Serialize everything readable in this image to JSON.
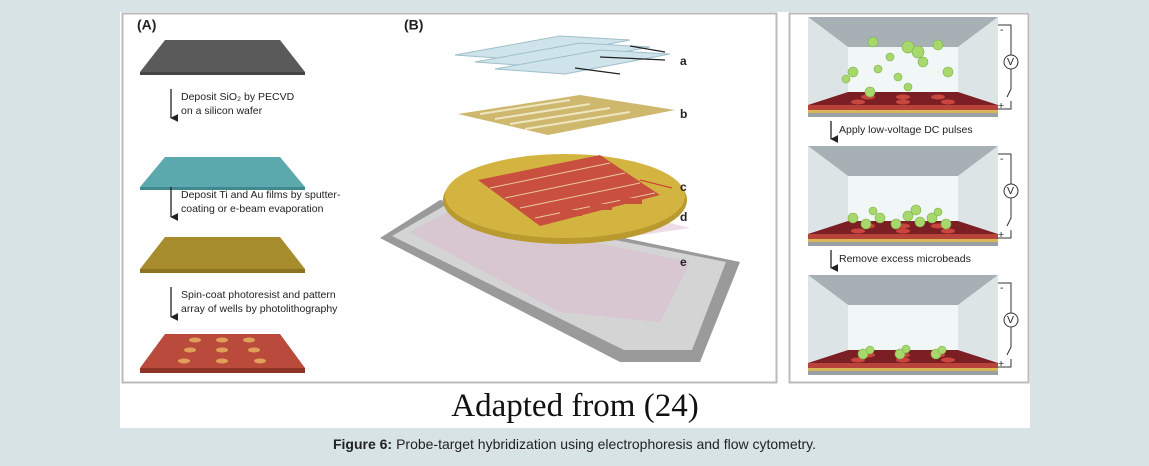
{
  "figure": {
    "panel_a": {
      "label": "(A)",
      "steps": [
        [
          "Deposit SiO₂ by PECVD",
          "on a silicon wafer"
        ],
        [
          "Deposit Ti and Au films by sputter-",
          "coating or e-beam evaporation"
        ],
        [
          "Spin-coat photoresist and pattern",
          "array of wells by photolithography"
        ]
      ]
    },
    "panel_b": {
      "label": "(B)",
      "layer_labels": [
        "a",
        "b",
        "c",
        "d",
        "e"
      ]
    },
    "panel_c": {
      "steps": [
        "Apply low-voltage DC pulses",
        "Remove excess microbeads"
      ],
      "terminals": {
        "negative": "-",
        "positive": "+",
        "meter": "V"
      }
    },
    "attribution": "Adapted from (24)",
    "caption": {
      "label": "Figure 6:",
      "text": "Probe-target hybridization using electrophoresis and flow cytometry."
    }
  }
}
